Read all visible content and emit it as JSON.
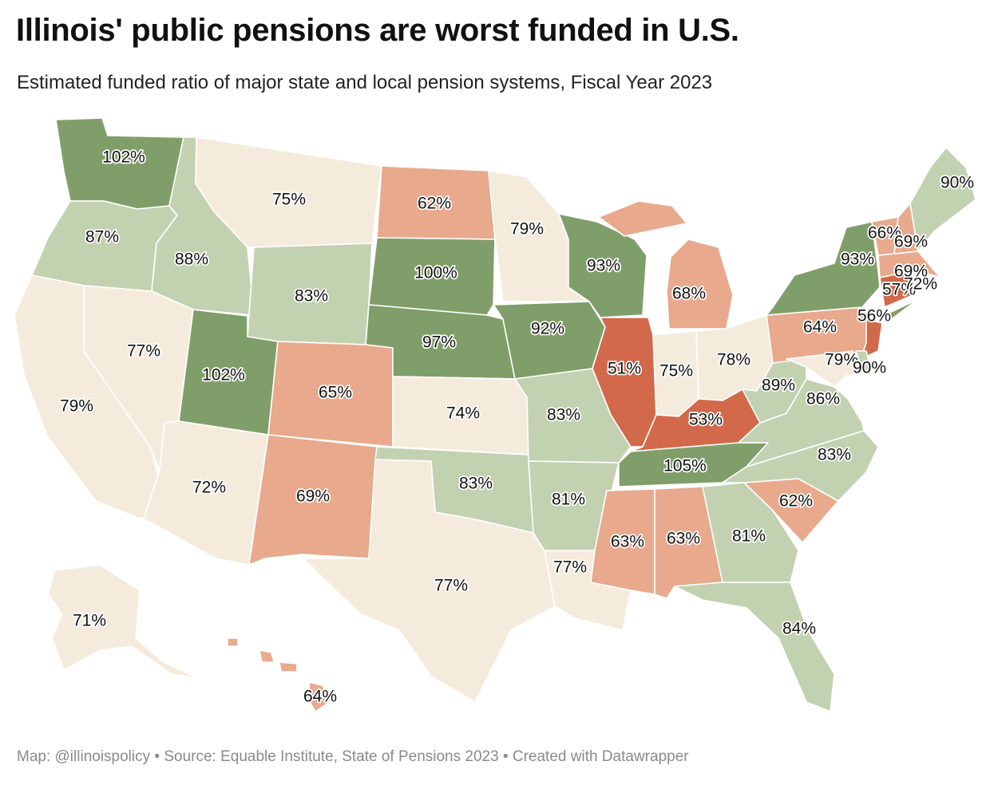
{
  "title": "Illinois' public pensions are worst funded in U.S.",
  "subtitle": "Estimated funded ratio of major state and local pension systems, Fiscal Year 2023",
  "footer": "Map: @illinoispolicy • Source: Equable Institute, State of Pensions 2023 • Created with Datawrapper",
  "colors": {
    "very_low": "#d1694a",
    "low": "#e8a98d",
    "mid": "#f5ebdd",
    "high": "#c2d1b0",
    "very_high": "#809e69"
  },
  "states": {
    "WA": {
      "value": "102%",
      "band": "very_high"
    },
    "OR": {
      "value": "87%",
      "band": "high"
    },
    "CA": {
      "value": "79%",
      "band": "mid"
    },
    "ID": {
      "value": "88%",
      "band": "high"
    },
    "NV": {
      "value": "77%",
      "band": "mid"
    },
    "MT": {
      "value": "75%",
      "band": "mid"
    },
    "WY": {
      "value": "83%",
      "band": "high"
    },
    "UT": {
      "value": "102%",
      "band": "very_high"
    },
    "AZ": {
      "value": "72%",
      "band": "mid"
    },
    "CO": {
      "value": "65%",
      "band": "low"
    },
    "NM": {
      "value": "69%",
      "band": "low"
    },
    "ND": {
      "value": "62%",
      "band": "low"
    },
    "SD": {
      "value": "100%",
      "band": "very_high"
    },
    "NE": {
      "value": "97%",
      "band": "very_high"
    },
    "KS": {
      "value": "74%",
      "band": "mid"
    },
    "OK": {
      "value": "83%",
      "band": "high"
    },
    "TX": {
      "value": "77%",
      "band": "mid"
    },
    "MN": {
      "value": "79%",
      "band": "mid"
    },
    "IA": {
      "value": "92%",
      "band": "very_high"
    },
    "MO": {
      "value": "83%",
      "band": "high"
    },
    "AR": {
      "value": "81%",
      "band": "high"
    },
    "LA": {
      "value": "77%",
      "band": "mid"
    },
    "WI": {
      "value": "93%",
      "band": "very_high"
    },
    "IL": {
      "value": "51%",
      "band": "very_low"
    },
    "MI": {
      "value": "68%",
      "band": "low"
    },
    "IN": {
      "value": "75%",
      "band": "mid"
    },
    "OH": {
      "value": "78%",
      "band": "mid"
    },
    "KY": {
      "value": "53%",
      "band": "very_low"
    },
    "TN": {
      "value": "105%",
      "band": "very_high"
    },
    "MS": {
      "value": "63%",
      "band": "low"
    },
    "AL": {
      "value": "63%",
      "band": "low"
    },
    "GA": {
      "value": "81%",
      "band": "high"
    },
    "FL": {
      "value": "84%",
      "band": "high"
    },
    "SC": {
      "value": "62%",
      "band": "low"
    },
    "NC": {
      "value": "83%",
      "band": "high"
    },
    "VA": {
      "value": "86%",
      "band": "high"
    },
    "WV": {
      "value": "89%",
      "band": "high"
    },
    "PA": {
      "value": "64%",
      "band": "low"
    },
    "NY": {
      "value": "93%",
      "band": "very_high"
    },
    "NJ": {
      "value": "56%",
      "band": "very_low"
    },
    "MD": {
      "value": "79%",
      "band": "mid"
    },
    "DE": {
      "value": "90%",
      "band": "high"
    },
    "CT": {
      "value": "57%",
      "band": "very_low"
    },
    "RI": {
      "value": "72%",
      "band": "mid"
    },
    "MA": {
      "value": "69%",
      "band": "low"
    },
    "VT": {
      "value": "66%",
      "band": "low"
    },
    "NH": {
      "value": "69%",
      "band": "low"
    },
    "ME": {
      "value": "90%",
      "band": "high"
    },
    "AK": {
      "value": "71%",
      "band": "mid"
    },
    "HI": {
      "value": "64%",
      "band": "low"
    }
  }
}
